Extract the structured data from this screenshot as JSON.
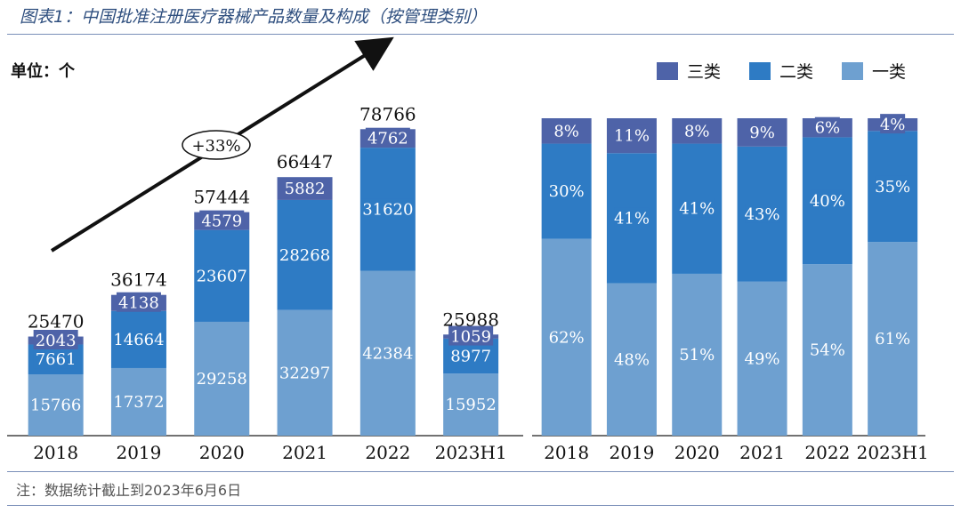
{
  "title": "图表1：中国批准注册医疗器械产品数量及构成（按管理类别）",
  "unit": "单位：个",
  "note": "注：数据统计截止到2023年6月6日",
  "growth_label": "+33%",
  "colors": {
    "class3": "#4e63a8",
    "class2": "#2e7bc4",
    "class1": "#6ea0d0",
    "axis": "#444444"
  },
  "legend": [
    {
      "key": "class3",
      "label": "三类"
    },
    {
      "key": "class2",
      "label": "二类"
    },
    {
      "key": "class1",
      "label": "一类"
    }
  ],
  "chart_data": [
    {
      "type": "bar",
      "stacked": true,
      "title": "",
      "categories": [
        "2018",
        "2019",
        "2020",
        "2021",
        "2022",
        "2023H1"
      ],
      "totals": [
        "25470",
        "36174",
        "57444",
        "66447",
        "78766",
        "25988"
      ],
      "series": [
        {
          "name": "一类",
          "key": "class1",
          "values": [
            15766,
            17372,
            29258,
            32297,
            42384,
            15952
          ],
          "labels": [
            "15766",
            "17372",
            "29258",
            "32297",
            "42384",
            "15952"
          ]
        },
        {
          "name": "二类",
          "key": "class2",
          "values": [
            7661,
            14664,
            23607,
            28268,
            31620,
            8977
          ],
          "labels": [
            "7661",
            "14664",
            "23607",
            "28268",
            "31620",
            "8977"
          ]
        },
        {
          "name": "三类",
          "key": "class3",
          "values": [
            2043,
            4138,
            4579,
            5882,
            4762,
            1059
          ],
          "labels": [
            "2043",
            "4138",
            "4579",
            "5882",
            "4762",
            "1059"
          ]
        }
      ],
      "ylim": [
        0,
        85000
      ],
      "grid": false
    },
    {
      "type": "bar",
      "stacked": true,
      "normalized": true,
      "categories": [
        "2018",
        "2019",
        "2020",
        "2021",
        "2022",
        "2023H1"
      ],
      "series": [
        {
          "name": "一类",
          "key": "class1",
          "values": [
            62,
            48,
            51,
            49,
            54,
            61
          ],
          "labels": [
            "62%",
            "48%",
            "51%",
            "49%",
            "54%",
            "61%"
          ]
        },
        {
          "name": "二类",
          "key": "class2",
          "values": [
            30,
            41,
            41,
            43,
            40,
            35
          ],
          "labels": [
            "30%",
            "41%",
            "41%",
            "43%",
            "40%",
            "35%"
          ]
        },
        {
          "name": "三类",
          "key": "class3",
          "values": [
            8,
            11,
            8,
            9,
            6,
            4
          ],
          "labels": [
            "8%",
            "11%",
            "8%",
            "9%",
            "6%",
            "4%"
          ]
        }
      ],
      "ylim": [
        0,
        100
      ],
      "grid": false
    }
  ]
}
